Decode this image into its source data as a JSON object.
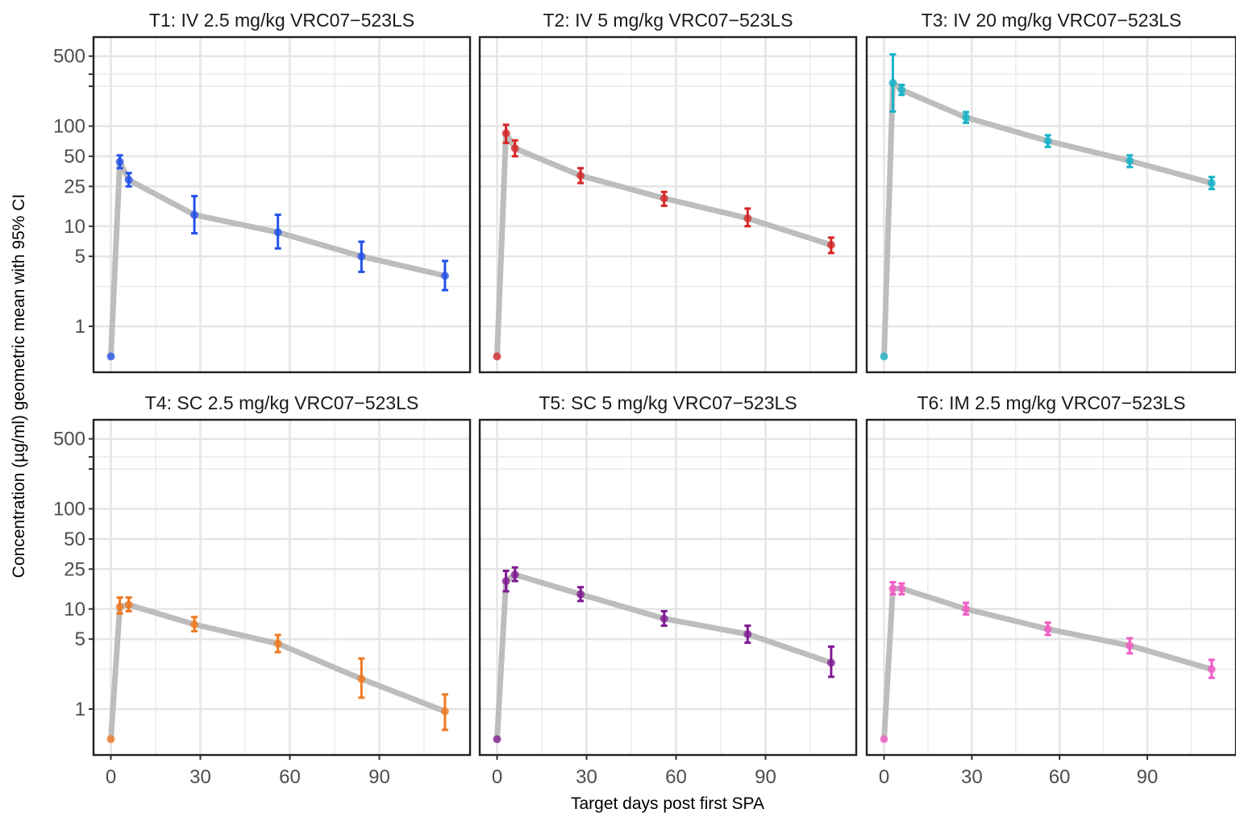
{
  "chart_data": {
    "type": "line",
    "layout": "facet-grid-2x3",
    "xlabel": "Target days post first SPA",
    "ylabel": "Concentration (µg/ml) geometric mean with 95% CI",
    "y_scale": "log10",
    "ylim": [
      0.5,
      700
    ],
    "y_ticks": [
      1,
      5,
      10,
      25,
      50,
      100,
      500
    ],
    "y_tick_labels": [
      "1",
      "5",
      "10",
      "25",
      "50",
      "100",
      "500"
    ],
    "xlim": [
      -4,
      115
    ],
    "x_ticks": [
      0,
      30,
      60,
      90
    ],
    "x_tick_labels": [
      "0",
      "30",
      "60",
      "90"
    ],
    "grid": true,
    "legend": "none",
    "error_bars": "95% CI",
    "line_color": "#bdbdbd",
    "panels": [
      {
        "title": "T1: IV 2.5 mg/kg VRC07−523LS",
        "color": "#2352e8",
        "points": [
          {
            "x": 0,
            "y": 0.5
          },
          {
            "x": 3,
            "y": 44,
            "lo": 38,
            "hi": 51
          },
          {
            "x": 6,
            "y": 29,
            "lo": 25,
            "hi": 34
          },
          {
            "x": 28,
            "y": 13,
            "lo": 8.5,
            "hi": 20
          },
          {
            "x": 56,
            "y": 8.7,
            "lo": 6,
            "hi": 13
          },
          {
            "x": 84,
            "y": 5,
            "lo": 3.5,
            "hi": 7
          },
          {
            "x": 112,
            "y": 3.2,
            "lo": 2.3,
            "hi": 4.5
          }
        ]
      },
      {
        "title": "T2: IV 5 mg/kg VRC07−523LS",
        "color": "#d62728",
        "points": [
          {
            "x": 0,
            "y": 0.5
          },
          {
            "x": 3,
            "y": 85,
            "lo": 68,
            "hi": 103
          },
          {
            "x": 6,
            "y": 60,
            "lo": 50,
            "hi": 72
          },
          {
            "x": 28,
            "y": 32,
            "lo": 27,
            "hi": 38
          },
          {
            "x": 56,
            "y": 19,
            "lo": 16,
            "hi": 22
          },
          {
            "x": 84,
            "y": 12,
            "lo": 10,
            "hi": 15
          },
          {
            "x": 112,
            "y": 6.5,
            "lo": 5.4,
            "hi": 7.7
          }
        ]
      },
      {
        "title": "T3: IV 20 mg/kg VRC07−523LS",
        "color": "#17b3c9",
        "points": [
          {
            "x": 0,
            "y": 0.5
          },
          {
            "x": 3,
            "y": 270,
            "lo": 140,
            "hi": 520
          },
          {
            "x": 6,
            "y": 230,
            "lo": 205,
            "hi": 258
          },
          {
            "x": 28,
            "y": 122,
            "lo": 108,
            "hi": 138
          },
          {
            "x": 56,
            "y": 71,
            "lo": 62,
            "hi": 81
          },
          {
            "x": 84,
            "y": 45,
            "lo": 39,
            "hi": 51
          },
          {
            "x": 112,
            "y": 27,
            "lo": 23.5,
            "hi": 31
          }
        ]
      },
      {
        "title": "T4: SC 2.5 mg/kg VRC07−523LS",
        "color": "#f07a22",
        "points": [
          {
            "x": 0,
            "y": 0.5
          },
          {
            "x": 3,
            "y": 10.5,
            "lo": 9,
            "hi": 13
          },
          {
            "x": 6,
            "y": 11,
            "lo": 9.5,
            "hi": 13
          },
          {
            "x": 28,
            "y": 7,
            "lo": 6,
            "hi": 8.3
          },
          {
            "x": 56,
            "y": 4.5,
            "lo": 3.7,
            "hi": 5.5
          },
          {
            "x": 84,
            "y": 2,
            "lo": 1.3,
            "hi": 3.2
          },
          {
            "x": 112,
            "y": 0.95,
            "lo": 0.62,
            "hi": 1.4
          }
        ]
      },
      {
        "title": "T5: SC 5 mg/kg VRC07−523LS",
        "color": "#7f1a93",
        "points": [
          {
            "x": 0,
            "y": 0.5
          },
          {
            "x": 3,
            "y": 19,
            "lo": 15,
            "hi": 24
          },
          {
            "x": 6,
            "y": 22,
            "lo": 19,
            "hi": 26
          },
          {
            "x": 28,
            "y": 14,
            "lo": 12,
            "hi": 16.5
          },
          {
            "x": 56,
            "y": 8,
            "lo": 6.8,
            "hi": 9.5
          },
          {
            "x": 84,
            "y": 5.6,
            "lo": 4.6,
            "hi": 6.8
          },
          {
            "x": 112,
            "y": 2.9,
            "lo": 2.1,
            "hi": 4.2
          }
        ]
      },
      {
        "title": "T6: IM 2.5 mg/kg VRC07−523LS",
        "color": "#f25cc4",
        "points": [
          {
            "x": 0,
            "y": 0.5
          },
          {
            "x": 3,
            "y": 16,
            "lo": 14,
            "hi": 18.5
          },
          {
            "x": 6,
            "y": 16,
            "lo": 14,
            "hi": 18
          },
          {
            "x": 28,
            "y": 10,
            "lo": 8.8,
            "hi": 11.5
          },
          {
            "x": 56,
            "y": 6.3,
            "lo": 5.5,
            "hi": 7.3
          },
          {
            "x": 84,
            "y": 4.3,
            "lo": 3.6,
            "hi": 5.1
          },
          {
            "x": 112,
            "y": 2.5,
            "lo": 2.05,
            "hi": 3.1
          }
        ]
      }
    ]
  }
}
